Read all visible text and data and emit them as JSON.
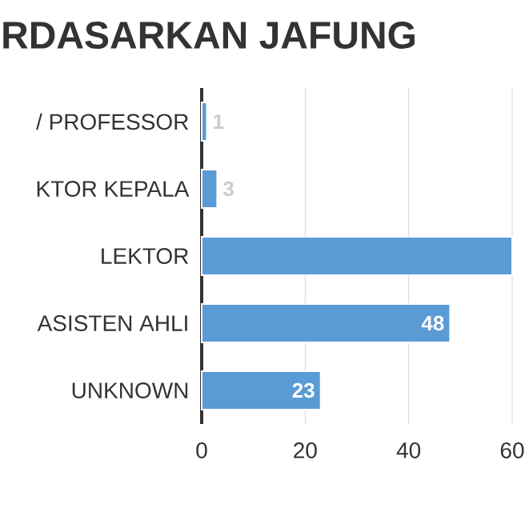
{
  "chart_data": {
    "type": "bar",
    "orientation": "horizontal",
    "title": "RDASARKAN JAFUNG",
    "categories": [
      "/ PROFESSOR",
      "KTOR KEPALA",
      "LEKTOR",
      "ASISTEN AHLI",
      "UNKNOWN"
    ],
    "values": [
      1,
      3,
      60,
      48,
      23
    ],
    "value_labels": [
      "1",
      "3",
      null,
      "48",
      "23"
    ],
    "color": "#5b9bd5",
    "xlim": [
      0,
      60
    ],
    "xticks": [
      0,
      20,
      40,
      60
    ],
    "grid": "x"
  }
}
